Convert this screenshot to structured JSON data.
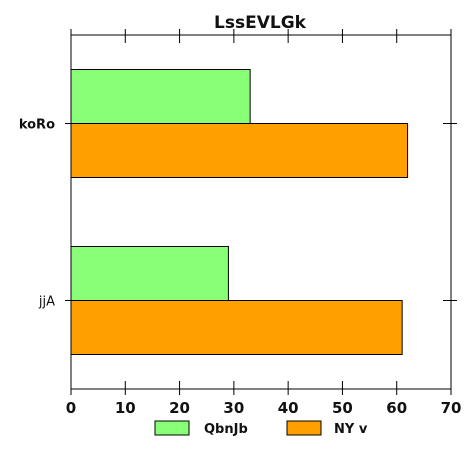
{
  "chart_data": {
    "type": "bar",
    "orientation": "horizontal",
    "title": "LssEVLGk",
    "xlabel": "",
    "ylabel": "",
    "categories": [
      "koRo",
      "jjA"
    ],
    "series": [
      {
        "name": "QbnJb",
        "values": [
          33,
          29
        ],
        "color": "#88ff77"
      },
      {
        "name": "NY v",
        "values": [
          62,
          61
        ],
        "color": "#ff9f00"
      }
    ],
    "xlim": [
      0,
      70
    ],
    "xticks": [
      0,
      10,
      20,
      30,
      40,
      50,
      60,
      70
    ],
    "grid": false,
    "legend_position": "bottom"
  }
}
